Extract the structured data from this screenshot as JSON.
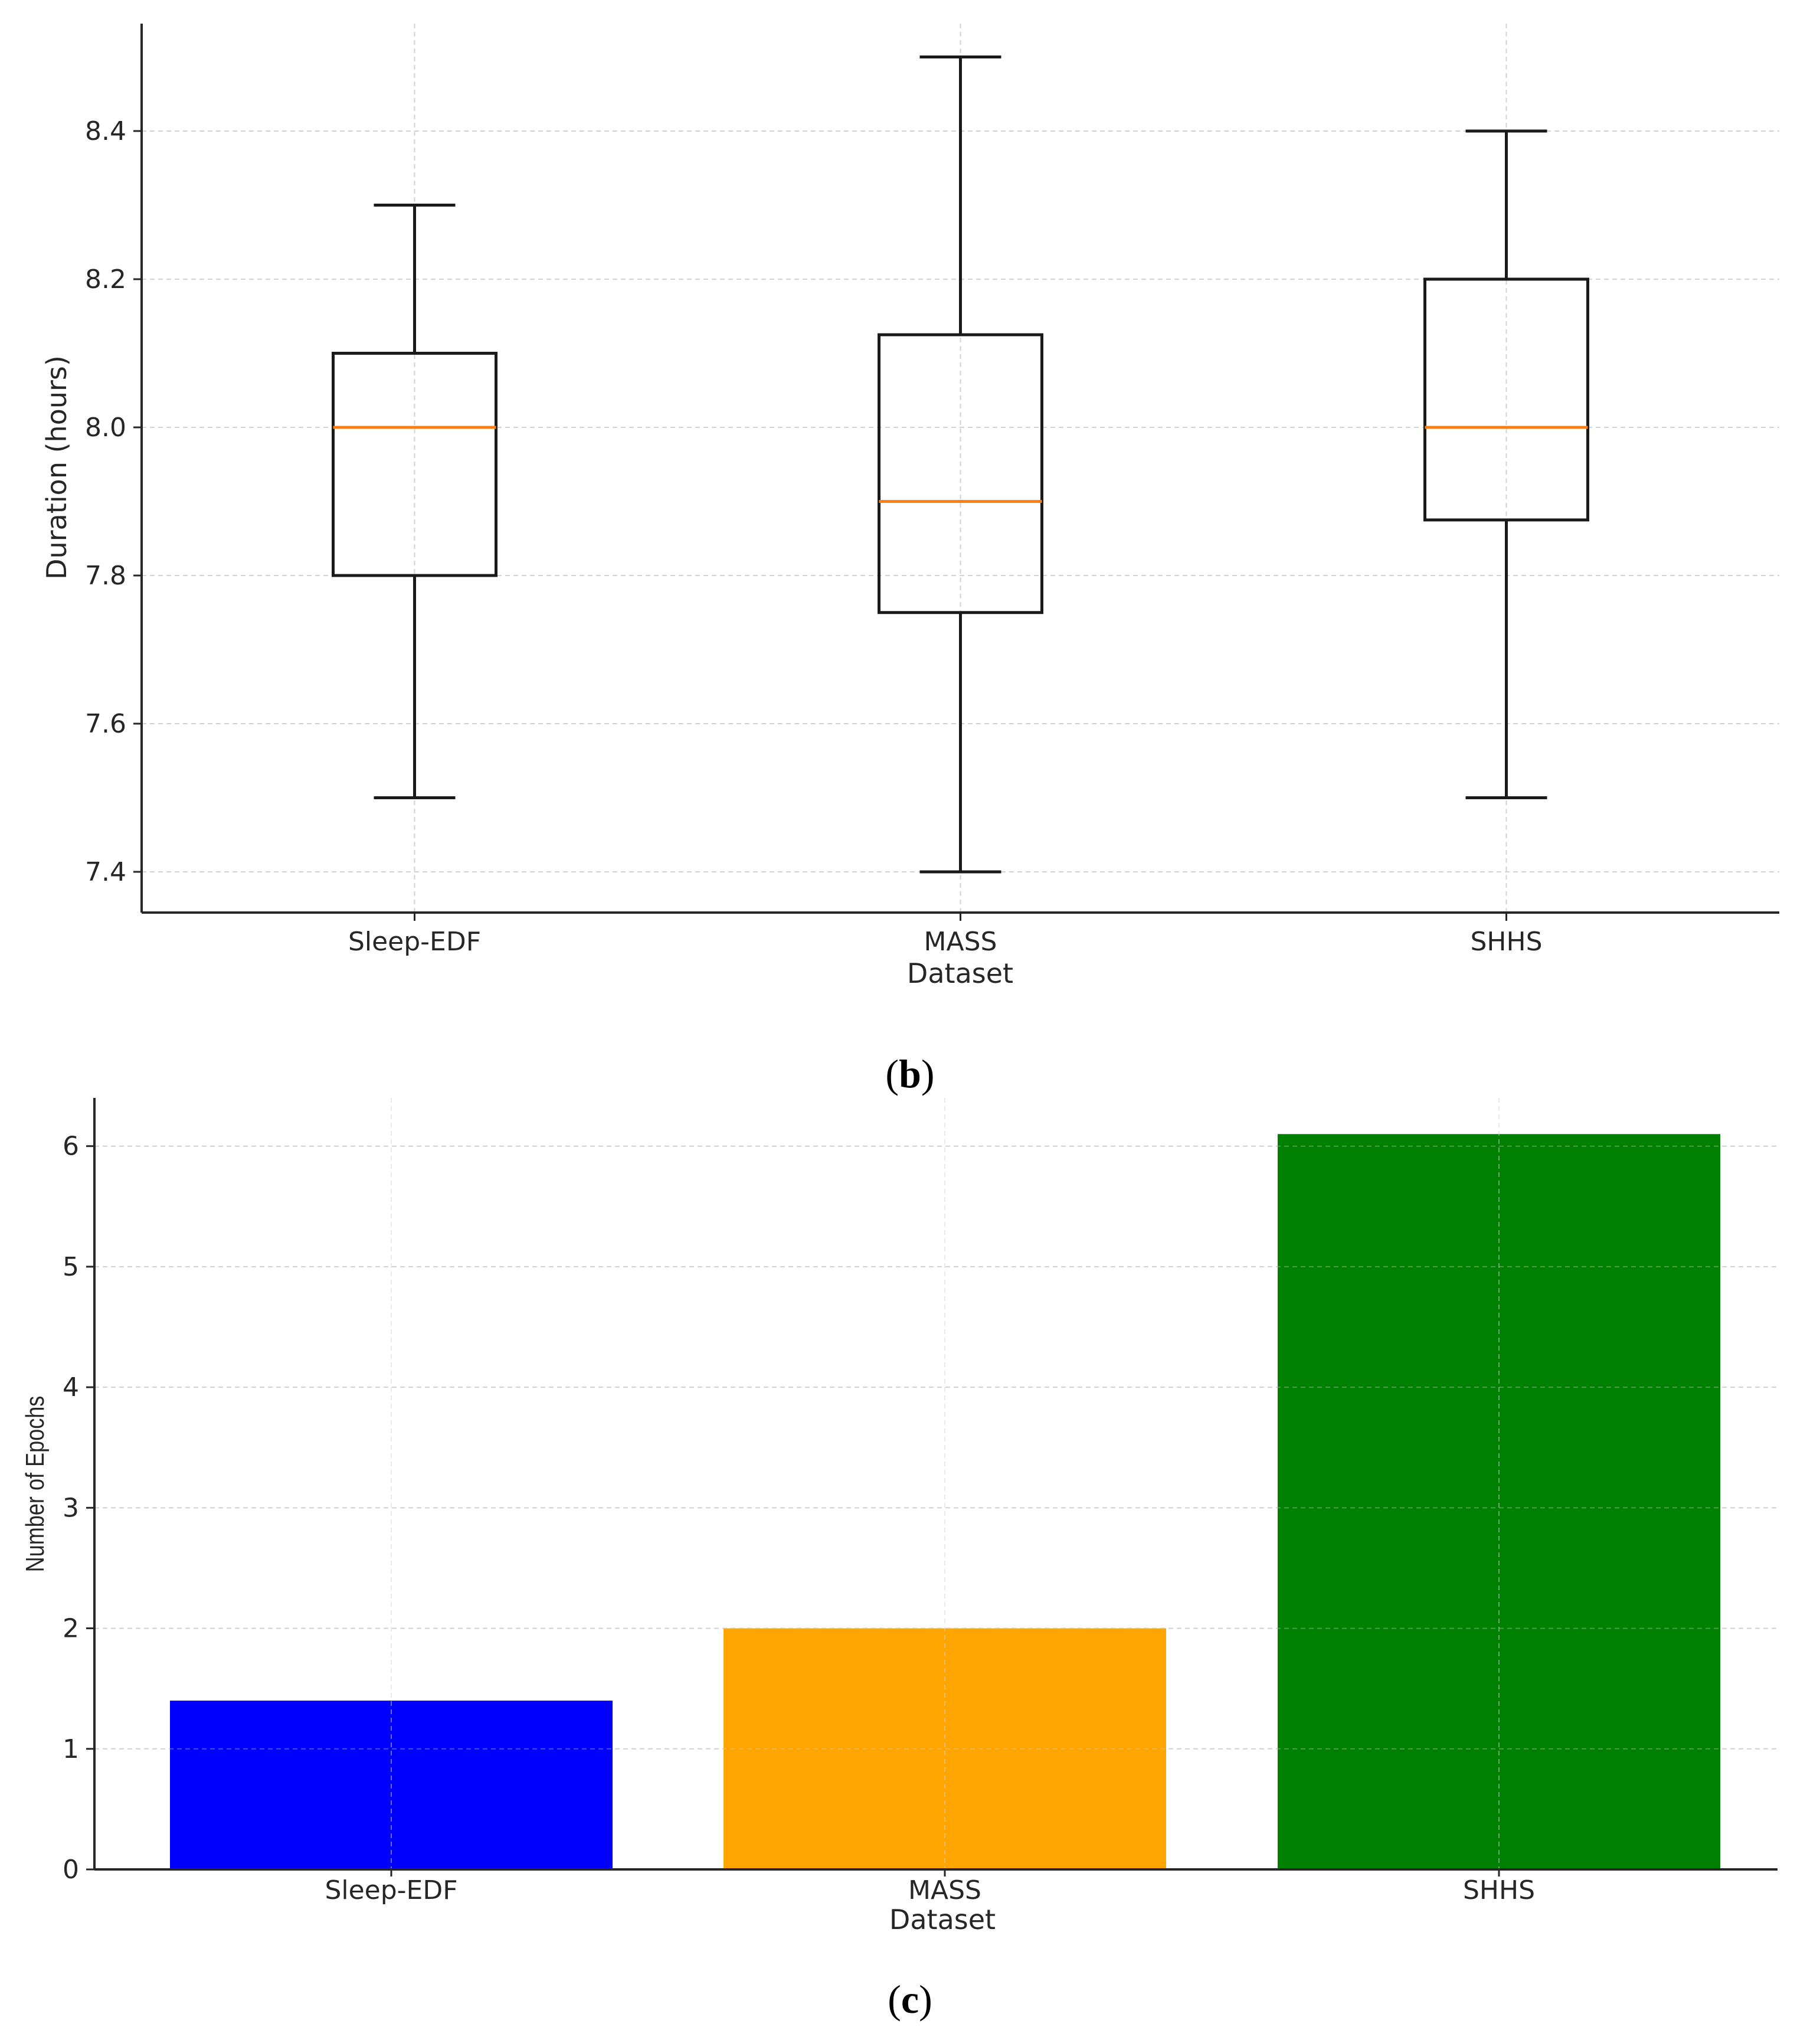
{
  "chart_data": [
    {
      "type": "box",
      "panel": "b",
      "caption_letter": "b",
      "caption_open": "(",
      "caption_close": ")",
      "xlabel": "Dataset",
      "ylabel": "Duration (hours)",
      "categories": [
        "Sleep-EDF",
        "MASS",
        "SHHS"
      ],
      "boxes": [
        {
          "name": "Sleep-EDF",
          "whisker_low": 7.5,
          "q1": 7.8,
          "median": 8.0,
          "q3": 8.1,
          "whisker_high": 8.3
        },
        {
          "name": "MASS",
          "whisker_low": 7.4,
          "q1": 7.75,
          "median": 7.9,
          "q3": 8.125,
          "whisker_high": 8.5
        },
        {
          "name": "SHHS",
          "whisker_low": 7.5,
          "q1": 7.875,
          "median": 8.0,
          "q3": 8.2,
          "whisker_high": 8.4
        }
      ],
      "yticks": [
        "7.4",
        "7.6",
        "7.8",
        "8.0",
        "8.2",
        "8.4"
      ],
      "ylim": [
        7.345,
        8.545
      ],
      "grid": true,
      "median_color": "#ff7f0e",
      "box_color": "#1a1a1a"
    },
    {
      "type": "bar",
      "panel": "c",
      "caption_letter": "c",
      "caption_open": "(",
      "caption_close": ")",
      "xlabel": "Dataset",
      "ylabel": "Number of Epochs",
      "categories": [
        "Sleep-EDF",
        "MASS",
        "SHHS"
      ],
      "values": [
        1.4,
        2.0,
        6.1
      ],
      "colors": [
        "#0000ff",
        "#ffa500",
        "#008000"
      ],
      "yticks": [
        "0",
        "1",
        "2",
        "3",
        "4",
        "5",
        "6"
      ],
      "ylim": [
        0,
        6.4
      ],
      "grid": true
    }
  ]
}
